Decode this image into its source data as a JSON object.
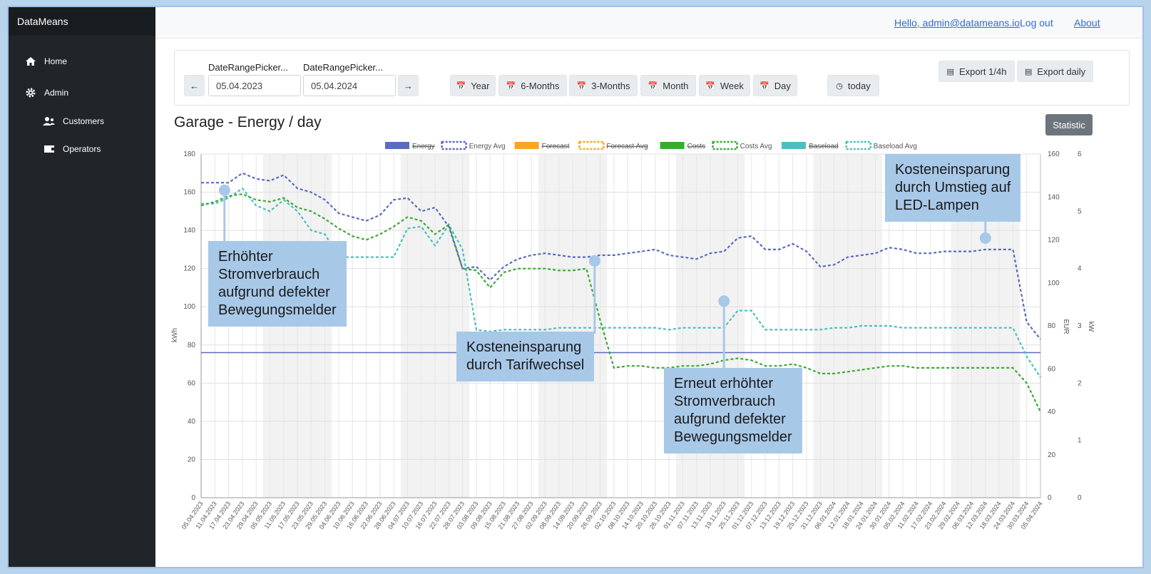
{
  "app": {
    "brand": "DataMeans"
  },
  "sidebar": {
    "items": [
      {
        "label": "Home",
        "icon": "home-icon"
      },
      {
        "label": "Admin",
        "icon": "gear-icon"
      },
      {
        "label": "Customers",
        "icon": "users-icon"
      },
      {
        "label": "Operators",
        "icon": "id-card-icon"
      }
    ]
  },
  "header": {
    "greeting": "Hello, admin@datameans.io",
    "logout": "Log out",
    "about": "About"
  },
  "toolbar": {
    "start_label": "DateRangePicker...",
    "end_label": "DateRangePicker...",
    "start_value": "05.04.2023",
    "end_value": "05.04.2024",
    "prev": "←",
    "next": "→",
    "ranges": [
      "Year",
      "6-Months",
      "3-Months",
      "Month",
      "Week",
      "Day"
    ],
    "today": "today",
    "export_quarter": "Export 1/4h",
    "export_daily": "Export daily"
  },
  "page": {
    "title": "Garage - Energy / day",
    "statistic": "Statistic"
  },
  "callouts": {
    "c1": [
      "Erhöhter",
      "Stromverbrauch",
      "aufgrund defekter",
      "Bewegungsmelder"
    ],
    "c2": [
      "Kosteneinsparung",
      "durch Tarifwechsel"
    ],
    "c3": [
      "Erneut erhöhter",
      "Stromverbrauch",
      "aufgrund defekter",
      "Bewegungsmelder"
    ],
    "c4": [
      "Kosteneinsparung",
      "durch Umstieg auf",
      "LED-Lampen"
    ]
  },
  "chart_data": {
    "type": "line",
    "ylabel_left": "kWh",
    "ylabel_right1": "EUR",
    "ylabel_right2": "kW",
    "ylim_left": [
      0,
      180
    ],
    "ylim_right1": [
      0,
      160
    ],
    "ylim_right2": [
      0,
      6
    ],
    "yticks_left": [
      0,
      20,
      40,
      60,
      80,
      100,
      120,
      140,
      160,
      180
    ],
    "yticks_right1": [
      0,
      20,
      40,
      60,
      80,
      100,
      120,
      140,
      160
    ],
    "yticks_right2": [
      0,
      1,
      2,
      3,
      4,
      5,
      6
    ],
    "legend_position": "top-center",
    "grid": true,
    "legend": [
      {
        "name": "Energy",
        "color": "#5b6bbf",
        "dashed": false,
        "hidden": true
      },
      {
        "name": "Energy Avg",
        "color": "#5b6bbf",
        "dashed": true,
        "hidden": false
      },
      {
        "name": "Forecast",
        "color": "#f5a623",
        "dashed": false,
        "hidden": true
      },
      {
        "name": "Forecast Avg",
        "color": "#f5a623",
        "dashed": true,
        "hidden": true
      },
      {
        "name": "Costs",
        "color": "#3aaa35",
        "dashed": false,
        "hidden": true
      },
      {
        "name": "Costs Avg",
        "color": "#3aaa35",
        "dashed": true,
        "hidden": false
      },
      {
        "name": "Baseload",
        "color": "#4bbfbf",
        "dashed": false,
        "hidden": true
      },
      {
        "name": "Baseload Avg",
        "color": "#4bbfbf",
        "dashed": true,
        "hidden": false
      }
    ],
    "x_labels": [
      "05.04.2023",
      "11.04.2023",
      "17.04.2023",
      "23.04.2023",
      "29.04.2023",
      "05.05.2023",
      "11.05.2023",
      "17.05.2023",
      "23.05.2023",
      "29.05.2023",
      "04.06.2023",
      "10.06.2023",
      "16.06.2023",
      "22.06.2023",
      "28.06.2023",
      "04.07.2023",
      "10.07.2023",
      "16.07.2023",
      "22.07.2023",
      "28.07.2023",
      "03.08.2023",
      "09.08.2023",
      "15.08.2023",
      "21.08.2023",
      "27.08.2023",
      "02.09.2023",
      "08.09.2023",
      "14.09.2023",
      "20.09.2023",
      "26.09.2023",
      "02.10.2023",
      "08.10.2023",
      "14.10.2023",
      "20.10.2023",
      "26.10.2023",
      "01.11.2023",
      "07.11.2023",
      "13.11.2023",
      "19.11.2023",
      "25.11.2023",
      "01.12.2023",
      "07.12.2023",
      "13.12.2023",
      "19.12.2023",
      "25.12.2023",
      "31.12.2023",
      "06.01.2024",
      "12.01.2024",
      "18.01.2024",
      "24.01.2024",
      "30.01.2024",
      "05.02.2024",
      "11.02.2024",
      "17.02.2024",
      "23.02.2024",
      "29.02.2024",
      "06.03.2024",
      "12.03.2024",
      "18.03.2024",
      "24.03.2024",
      "30.03.2024",
      "05.04.2024"
    ],
    "energy_reference_kwh": 76,
    "energy_avg_kwh": [
      165,
      165,
      165,
      170,
      167,
      166,
      169,
      162,
      160,
      156,
      149,
      147,
      145,
      148,
      156,
      157,
      150,
      152,
      142,
      120,
      121,
      114,
      121,
      125,
      127,
      128,
      127,
      126,
      126,
      127,
      127,
      128,
      129,
      130,
      127,
      126,
      125,
      128,
      129,
      136,
      137,
      130,
      130,
      133,
      129,
      121,
      122,
      126,
      127,
      128,
      131,
      130,
      128,
      128,
      129,
      129,
      129,
      130,
      130,
      130,
      92,
      83
    ],
    "costs_avg_kwh": [
      153,
      155,
      158,
      159,
      156,
      155,
      157,
      152,
      150,
      146,
      141,
      137,
      135,
      138,
      142,
      147,
      145,
      138,
      143,
      120,
      119,
      110,
      118,
      120,
      120,
      120,
      119,
      119,
      120,
      93,
      68,
      69,
      69,
      68,
      68,
      69,
      69,
      70,
      72,
      73,
      72,
      69,
      69,
      70,
      68,
      65,
      65,
      66,
      67,
      68,
      69,
      69,
      68,
      68,
      68,
      68,
      68,
      68,
      68,
      68,
      60,
      45
    ],
    "baseload_avg_kwh": [
      154,
      154,
      157,
      162,
      153,
      150,
      156,
      150,
      140,
      138,
      126,
      126,
      126,
      126,
      126,
      141,
      142,
      132,
      143,
      130,
      88,
      87,
      88,
      88,
      88,
      88,
      89,
      89,
      89,
      89,
      89,
      89,
      89,
      89,
      88,
      89,
      89,
      89,
      89,
      98,
      98,
      88,
      88,
      88,
      88,
      88,
      89,
      89,
      90,
      90,
      90,
      89,
      89,
      89,
      89,
      89,
      89,
      89,
      89,
      89,
      74,
      63
    ]
  }
}
